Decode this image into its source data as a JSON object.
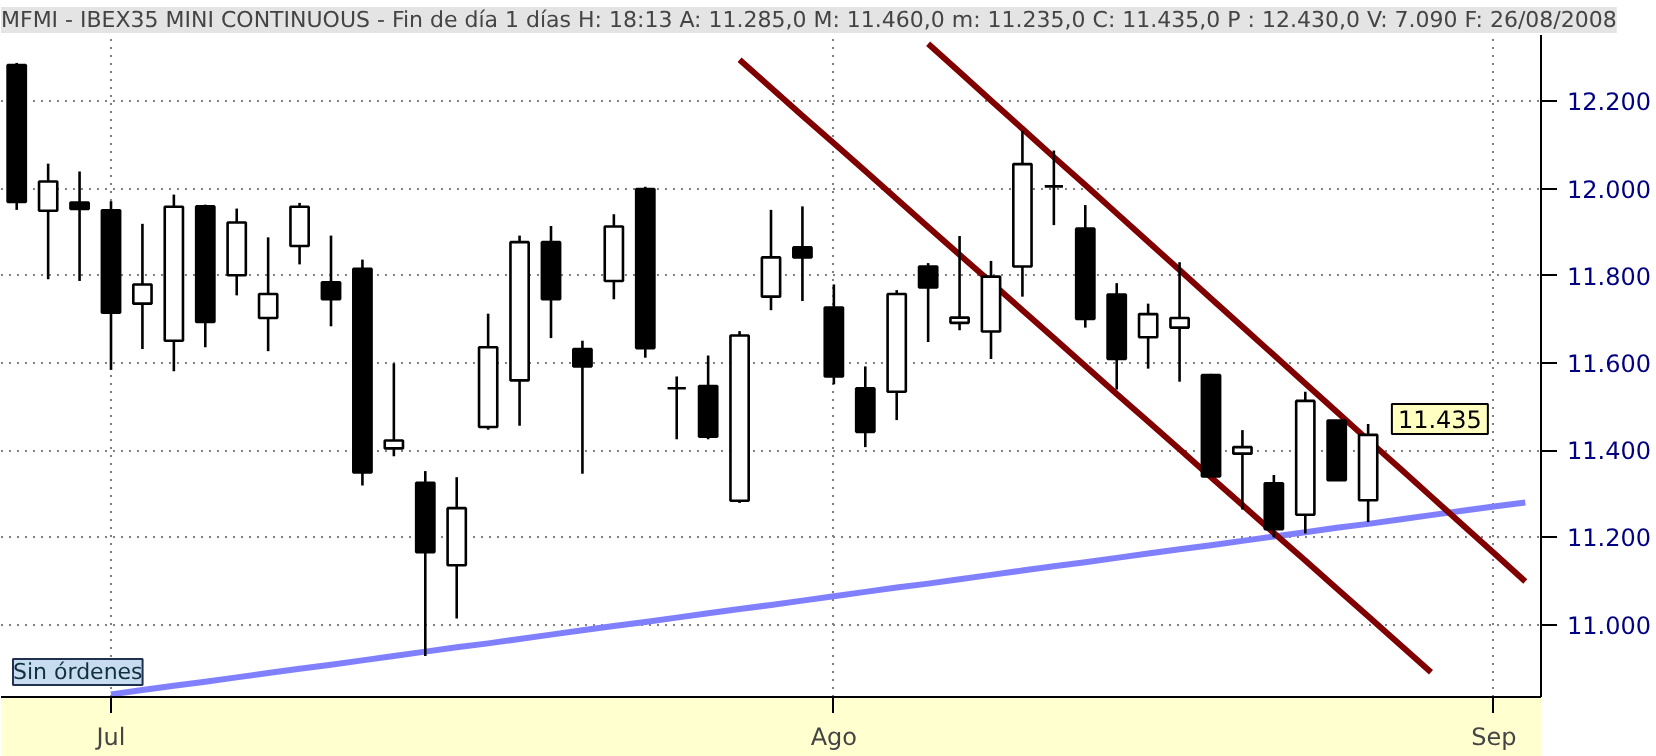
{
  "chart_data": {
    "type": "candlestick",
    "title": "MFMI - IBEX35 MINI CONTINUOUS - Fin de día 1 días H: 18:13 A: 11.285,0 M: 11.460,0 m: 11.235,0 C: 11.435,0 P : 12.430,0 V: 7.090 F: 26/08/2008",
    "categories": [
      null,
      null,
      null,
      "Jul",
      null,
      null,
      null,
      null,
      null,
      null,
      null,
      null,
      null,
      null,
      null,
      null,
      null,
      null,
      null,
      null,
      null,
      null,
      null,
      null,
      null,
      null,
      "Ago",
      null,
      null,
      null,
      null,
      null,
      null,
      null,
      null,
      null,
      null,
      null,
      null,
      null,
      null,
      null,
      null,
      null,
      null,
      null,
      null,
      "Sep",
      null
    ],
    "ohlc": [
      [
        12283,
        12288,
        11951,
        11969
      ],
      [
        11949,
        12057,
        11792,
        12016
      ],
      [
        11968,
        12039,
        11788,
        11953
      ],
      [
        11950,
        11971,
        11584,
        11715
      ],
      [
        11736,
        11919,
        11632,
        11780
      ],
      [
        11651,
        11986,
        11581,
        11958
      ],
      [
        11959,
        11963,
        11636,
        11694
      ],
      [
        11801,
        11954,
        11755,
        11922
      ],
      [
        11703,
        11888,
        11627,
        11758
      ],
      [
        11868,
        11967,
        11826,
        11958
      ],
      [
        11785,
        11892,
        11684,
        11746
      ],
      [
        11816,
        11837,
        11319,
        11349
      ],
      [
        11404,
        11599,
        11386,
        11422
      ],
      [
        11325,
        11352,
        10928,
        11166
      ],
      [
        11136,
        11338,
        11014,
        11267
      ],
      [
        11453,
        11713,
        11447,
        11636
      ],
      [
        11560,
        11892,
        11456,
        11877
      ],
      [
        11877,
        11914,
        11657,
        11746
      ],
      [
        11632,
        11651,
        11346,
        11592
      ],
      [
        11788,
        11941,
        11746,
        11913
      ],
      [
        11999,
        12004,
        11612,
        11634
      ],
      [
        11542,
        11569,
        11425,
        11542
      ],
      [
        11547,
        11617,
        11425,
        11431
      ],
      [
        11284,
        11673,
        11279,
        11663
      ],
      [
        11752,
        11951,
        11721,
        11842
      ],
      [
        11865,
        11959,
        11742,
        11842
      ],
      [
        11727,
        11780,
        11551,
        11569
      ],
      [
        11542,
        11592,
        11407,
        11442
      ],
      [
        11534,
        11767,
        11469,
        11758
      ],
      [
        11821,
        11829,
        11648,
        11773
      ],
      [
        11692,
        11891,
        11675,
        11704
      ],
      [
        11672,
        11834,
        11609,
        11798
      ],
      [
        11821,
        12132,
        11752,
        12056
      ],
      [
        12005,
        12087,
        11916,
        12005
      ],
      [
        11908,
        11962,
        11681,
        11701
      ],
      [
        11757,
        11783,
        11539,
        11609
      ],
      [
        11659,
        11736,
        11587,
        11712
      ],
      [
        11681,
        11831,
        11557,
        11703
      ],
      [
        11572,
        11575,
        11340,
        11340
      ],
      [
        11392,
        11446,
        11264,
        11407
      ],
      [
        11324,
        11343,
        11200,
        11219
      ],
      [
        11252,
        11534,
        11209,
        11513
      ],
      [
        11468,
        11468,
        11331,
        11331
      ],
      [
        11285,
        11460,
        11235,
        11435
      ],
      null,
      null,
      null,
      null,
      null
    ],
    "series": [
      {
        "type": "line",
        "color": "#8080ff",
        "values": [
          null,
          null,
          null,
          10840,
          10850,
          10860,
          10869,
          10879,
          10889,
          10899,
          10908,
          10918,
          10928,
          10938,
          10948,
          10957,
          10967,
          10977,
          10987,
          10997,
          11006,
          11016,
          11026,
          11036,
          11045,
          11055,
          11065,
          11075,
          11085,
          11094,
          11104,
          11114,
          11124,
          11134,
          11143,
          11153,
          11163,
          11173,
          11182,
          11192,
          11202,
          11212,
          11222,
          11231,
          11241,
          11251,
          11261,
          11271,
          11280
        ]
      },
      {
        "type": "line",
        "color": "#800000",
        "values": [
          null,
          null,
          null,
          null,
          null,
          null,
          null,
          null,
          null,
          null,
          null,
          null,
          null,
          null,
          null,
          null,
          null,
          null,
          null,
          null,
          null,
          null,
          null,
          12295,
          12231,
          12167,
          12104,
          12040,
          11976,
          11912,
          11848,
          11785,
          11721,
          11657,
          11593,
          11529,
          11466,
          11402,
          11338,
          11274,
          11210,
          11147,
          11083,
          11019,
          10955,
          10891,
          null,
          null,
          null
        ]
      },
      {
        "type": "line",
        "color": "#800000",
        "values": [
          null,
          null,
          null,
          null,
          null,
          null,
          null,
          null,
          null,
          null,
          null,
          null,
          null,
          null,
          null,
          null,
          null,
          null,
          null,
          null,
          null,
          null,
          null,
          null,
          null,
          null,
          null,
          null,
          null,
          12332,
          12267,
          12202,
          12137,
          12072,
          12008,
          11943,
          11878,
          11813,
          11748,
          11683,
          11618,
          11553,
          11488,
          11423,
          11359,
          11294,
          11229,
          11164,
          11099
        ]
      }
    ],
    "ylim": [
      10834,
      12352
    ],
    "yticks": [
      {
        "value": 11000,
        "label": "11.000"
      },
      {
        "value": 11200,
        "label": "11.200"
      },
      {
        "value": 11400,
        "label": "11.400"
      },
      {
        "value": 11600,
        "label": "11.600"
      },
      {
        "value": 11800,
        "label": "11.800"
      },
      {
        "value": 12000,
        "label": "12.000"
      },
      {
        "value": 12200,
        "label": "12.200"
      }
    ],
    "grid": true,
    "annotations": [
      "11.435",
      "Sin órdenes"
    ]
  }
}
